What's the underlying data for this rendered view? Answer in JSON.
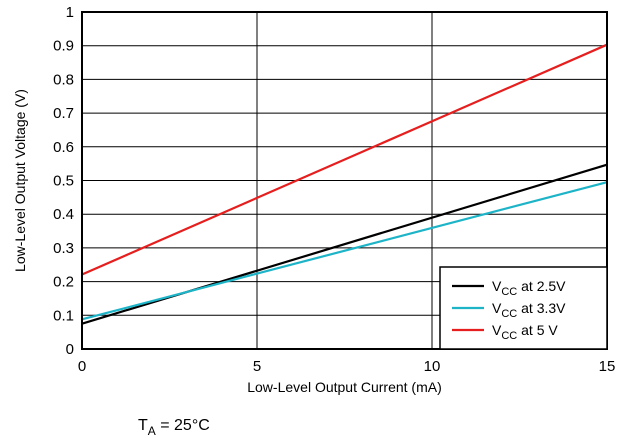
{
  "chart_data": {
    "type": "line",
    "xlabel": "Low-Level Output Current (mA)",
    "ylabel": "Low-Level Output Voltage (V)",
    "xlim": [
      0,
      15
    ],
    "ylim": [
      0,
      1
    ],
    "xticks": [
      0,
      5,
      10,
      15
    ],
    "yticks": [
      0,
      0.1,
      0.2,
      0.3,
      0.4,
      0.5,
      0.6,
      0.7,
      0.8,
      0.9,
      1
    ],
    "x_gridlines": [
      5,
      10
    ],
    "y_gridlines": [
      0.1,
      0.2,
      0.3,
      0.4,
      0.5,
      0.6,
      0.7,
      0.8,
      0.9
    ],
    "grid": true,
    "legend_position": "bottom-right",
    "series": [
      {
        "name": "VCC at 2.5V",
        "name_main": "V",
        "name_sub": "CC",
        "name_rest": " at 2.5V",
        "color": "#000000",
        "x": [
          0,
          15
        ],
        "y": [
          0.075,
          0.547
        ]
      },
      {
        "name": "VCC at 3.3V",
        "name_main": "V",
        "name_sub": "CC",
        "name_rest": " at 3.3V",
        "color": "#1eb4c8",
        "x": [
          0,
          15
        ],
        "y": [
          0.088,
          0.495
        ]
      },
      {
        "name": "VCC at 5 V",
        "name_main": "V",
        "name_sub": "CC",
        "name_rest": " at 5 V",
        "color": "#e61e1e",
        "x": [
          0,
          15
        ],
        "y": [
          0.221,
          0.903
        ]
      }
    ],
    "annotation": {
      "main": "T",
      "sub": "A",
      "rest": " = 25°C"
    }
  }
}
